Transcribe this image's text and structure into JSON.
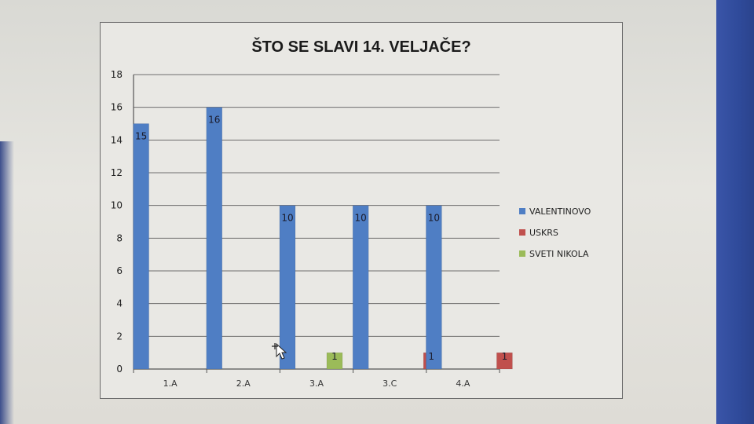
{
  "chart_data": {
    "type": "bar",
    "title": "ŠTO SE SLAVI 14. VELJAČE?",
    "categories": [
      "1.A",
      "2.A",
      "3.A",
      "3.C",
      "4.A"
    ],
    "series": [
      {
        "name": "VALENTINOVO",
        "values": [
          15,
          16,
          10,
          10,
          10
        ],
        "color": "#4f7ec4"
      },
      {
        "name": "USKRS",
        "values": [
          0,
          0,
          0,
          1,
          1
        ],
        "color": "#c0504d"
      },
      {
        "name": "SVETI NIKOLA",
        "values": [
          0,
          0,
          1,
          0,
          0
        ],
        "color": "#9bbb59"
      }
    ],
    "data_labels": [
      {
        "series": 0,
        "category": 0,
        "text": "15"
      },
      {
        "series": 0,
        "category": 1,
        "text": "16"
      },
      {
        "series": 0,
        "category": 2,
        "text": "10"
      },
      {
        "series": 0,
        "category": 3,
        "text": "10"
      },
      {
        "series": 0,
        "category": 4,
        "text": "10"
      },
      {
        "series": 2,
        "category": 2,
        "text": "1"
      },
      {
        "series": 1,
        "category": 3,
        "text": "1"
      },
      {
        "series": 1,
        "category": 4,
        "text": "1"
      }
    ],
    "ylim": [
      0,
      18
    ],
    "yticks": [
      0,
      2,
      4,
      6,
      8,
      10,
      12,
      14,
      16,
      18
    ],
    "grid": true,
    "legend": "right",
    "xlabel": "",
    "ylabel": ""
  }
}
